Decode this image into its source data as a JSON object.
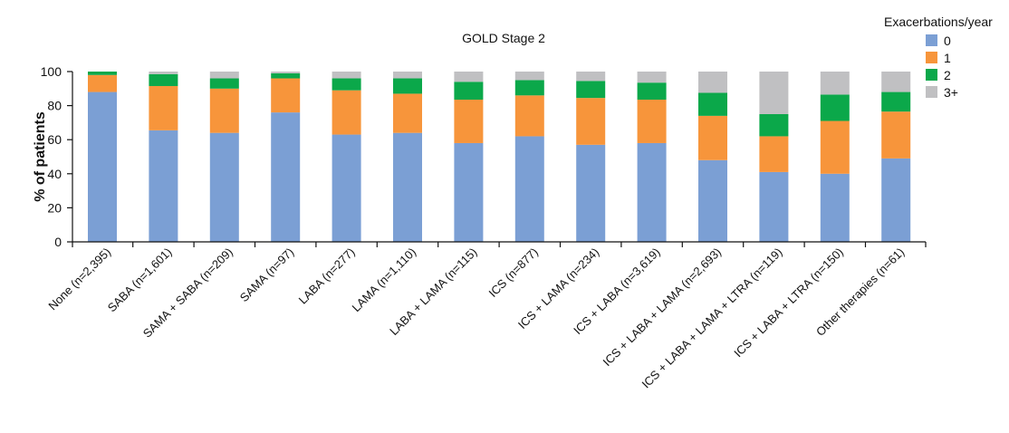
{
  "chart_data": {
    "type": "bar",
    "stacked": true,
    "title": "GOLD Stage 2",
    "xlabel": "",
    "ylabel": "% of patients",
    "ylim": [
      0,
      100
    ],
    "yticks": [
      0,
      20,
      40,
      60,
      80,
      100
    ],
    "legend_title": "Exacerbations/year",
    "legend_position": "top-right",
    "grid": false,
    "categories": [
      "None (n=2,395)",
      "SABA (n=1,601)",
      "SAMA + SABA (n=209)",
      "SAMA (n=97)",
      "LABA (n=277)",
      "LAMA (n=1,110)",
      "LABA + LAMA (n=115)",
      "ICS (n=877)",
      "ICS + LAMA (n=234)",
      "ICS + LABA (n=3,619)",
      "ICS + LABA + LAMA (n=2,693)",
      "ICS + LABA + LAMA + LTRA (n=119)",
      "ICS + LABA + LTRA (n=150)",
      "Other therapies (n=61)"
    ],
    "series": [
      {
        "name": "0",
        "color": "#7b9fd4",
        "values": [
          88,
          65.5,
          64,
          76,
          63,
          64,
          58,
          62,
          57,
          58,
          48,
          41,
          40,
          49
        ]
      },
      {
        "name": "1",
        "color": "#f7953b",
        "values": [
          10,
          26,
          26,
          20,
          26,
          23,
          25.5,
          24,
          27.5,
          25.5,
          26,
          21,
          31,
          27.5
        ]
      },
      {
        "name": "2",
        "color": "#0ba84a",
        "values": [
          2,
          7,
          6,
          3,
          7,
          9,
          10.5,
          9,
          10,
          10,
          13.5,
          13,
          15.5,
          11.5
        ]
      },
      {
        "name": "3+",
        "color": "#c0c0c2",
        "values": [
          0,
          1.5,
          4,
          1,
          4,
          4,
          6,
          5,
          5.5,
          6.5,
          12.5,
          25,
          13.5,
          12
        ]
      }
    ]
  }
}
